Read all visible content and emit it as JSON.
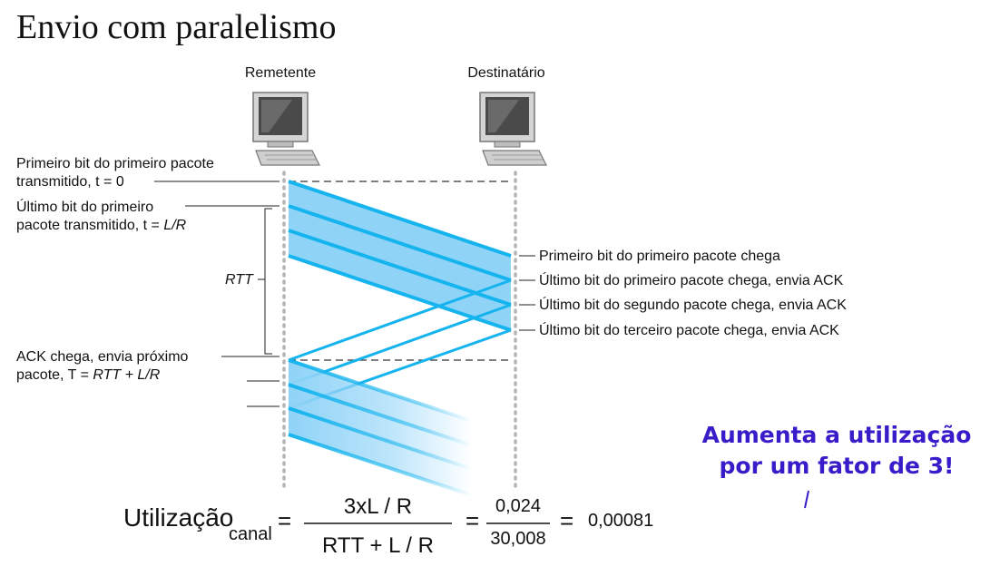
{
  "title": "Envio com paralelismo",
  "sender": "Remetente",
  "receiver": "Destinatário",
  "left_labels": {
    "first_bit_l1": "Primeiro bit do primeiro pacote",
    "first_bit_l2": "transmitido, t = 0",
    "last_bit_l1": "Último bit do primeiro",
    "last_bit_l2_prefix": "pacote transmitido, t = ",
    "last_bit_l2_var": "L/R",
    "rtt": "RTT",
    "ack_l1": "ACK chega, envia próximo",
    "ack_l2_prefix": "pacote, T = ",
    "ack_l2_var": "RTT + L/R"
  },
  "right_labels": [
    "Primeiro bit do primeiro pacote chega",
    "Último bit do primeiro pacote chega, envia ACK",
    "Último bit do segundo pacote chega, envia ACK",
    "Último bit do terceiro pacote chega, envia ACK"
  ],
  "callout": {
    "line1": "Aumenta a utilização",
    "line2": "por um fator de 3!"
  },
  "formula": {
    "lhs": "Utilização",
    "sub": "canal",
    "eq": "=",
    "num1": "3xL / R",
    "den1": "RTT + L / R",
    "num2": "0,024",
    "den2": "30,008",
    "result": "0,00081"
  },
  "colors": {
    "packet_fill": "#8fd3f7",
    "packet_line": "#16b4ee",
    "callout": "#3a1bc9"
  },
  "icons": [
    "computer-icon"
  ]
}
